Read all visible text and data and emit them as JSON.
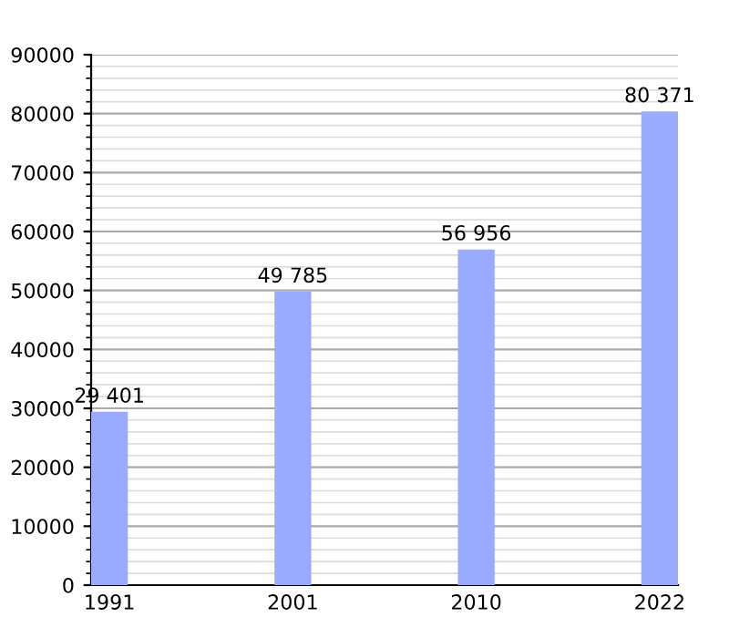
{
  "chart_data": {
    "type": "bar",
    "categories": [
      "1991",
      "2001",
      "2010",
      "2022"
    ],
    "values": [
      29401,
      49785,
      56956,
      80371
    ],
    "value_labels": [
      "29 401",
      "49 785",
      "56 956",
      "80 371"
    ],
    "color": "#99aaff",
    "ylim": [
      0,
      90000
    ],
    "yticks": [
      0,
      10000,
      20000,
      30000,
      40000,
      50000,
      60000,
      70000,
      80000,
      90000
    ],
    "grid": "y"
  }
}
